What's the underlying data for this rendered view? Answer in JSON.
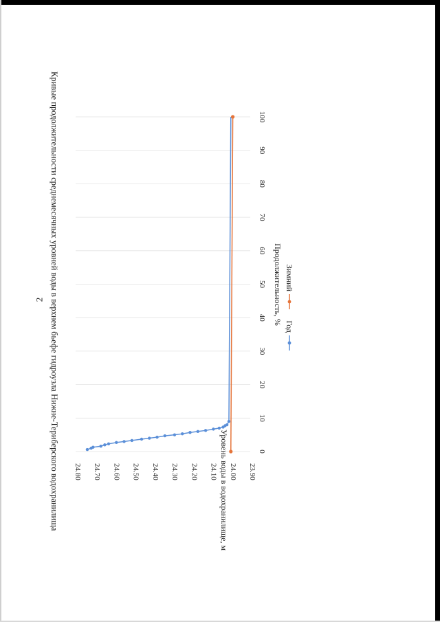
{
  "page": {
    "number": "2"
  },
  "chart_data": {
    "type": "line",
    "title": "Кривые продолжительности среднемесячных уровней воды в верхнем бьефе гидроузла Нижне-Териберского водохранилища",
    "xlabel": "Продолжительность, %",
    "ylabel": "Уровень воды в водохранилище, м",
    "xlim": [
      0,
      100
    ],
    "ylim": [
      23.9,
      24.8
    ],
    "xticks": [
      "0",
      "10",
      "20",
      "30",
      "40",
      "50",
      "60",
      "70",
      "80",
      "90",
      "100"
    ],
    "yticks": [
      "23.90",
      "24.00",
      "24.10",
      "24.20",
      "24.30",
      "24.40",
      "24.50",
      "24.60",
      "24.70",
      "24.80"
    ],
    "grid": true,
    "legend_position": "bottom",
    "series": [
      {
        "name": "Год",
        "color": "#5b8fd8",
        "points": [
          [
            0.6,
            24.74
          ],
          [
            1.0,
            24.72
          ],
          [
            1.3,
            24.71
          ],
          [
            1.6,
            24.67
          ],
          [
            2.0,
            24.65
          ],
          [
            2.3,
            24.63
          ],
          [
            2.7,
            24.59
          ],
          [
            3.0,
            24.55
          ],
          [
            3.3,
            24.51
          ],
          [
            3.7,
            24.46
          ],
          [
            4.0,
            24.42
          ],
          [
            4.3,
            24.38
          ],
          [
            4.7,
            24.34
          ],
          [
            5.0,
            24.29
          ],
          [
            5.3,
            24.25
          ],
          [
            5.7,
            24.21
          ],
          [
            6.0,
            24.17
          ],
          [
            6.3,
            24.13
          ],
          [
            6.7,
            24.09
          ],
          [
            7.0,
            24.06
          ],
          [
            7.3,
            24.04
          ],
          [
            7.7,
            24.03
          ],
          [
            8.0,
            24.02
          ],
          [
            9.0,
            24.01
          ],
          [
            100,
            24.0
          ]
        ]
      },
      {
        "name": "Зимний",
        "color": "#e5743a",
        "points": [
          [
            0,
            24.0
          ],
          [
            100,
            23.99
          ]
        ]
      }
    ]
  }
}
